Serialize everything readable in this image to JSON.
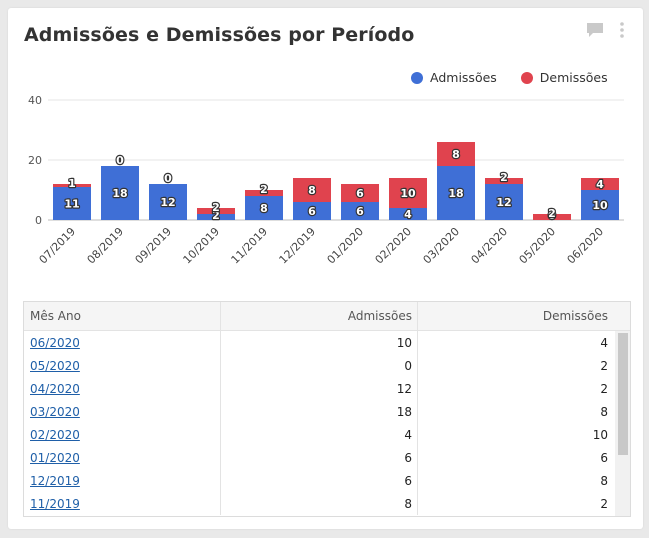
{
  "title": "Admissões e Demissões por Período",
  "icons": {
    "comment": "comment-icon",
    "more": "more-vertical-icon"
  },
  "colors": {
    "admissoes": "#3f6fd6",
    "demissoes": "#e0434e",
    "link": "#1f5fa8"
  },
  "legend": [
    {
      "label": "Admissões",
      "color": "#3f6fd6"
    },
    {
      "label": "Demissões",
      "color": "#e0434e"
    }
  ],
  "chart_data": {
    "type": "bar",
    "stacked": true,
    "title": "Admissões e Demissões por Período",
    "categories": [
      "07/2019",
      "08/2019",
      "09/2019",
      "10/2019",
      "11/2019",
      "12/2019",
      "01/2020",
      "02/2020",
      "03/2020",
      "04/2020",
      "05/2020",
      "06/2020"
    ],
    "series": [
      {
        "name": "Admissões",
        "color": "#3f6fd6",
        "values": [
          11,
          18,
          12,
          2,
          8,
          6,
          6,
          4,
          18,
          12,
          0,
          10
        ]
      },
      {
        "name": "Demissões",
        "color": "#e0434e",
        "values": [
          1,
          0,
          0,
          2,
          2,
          8,
          6,
          10,
          8,
          2,
          2,
          4
        ]
      }
    ],
    "yticks": [
      0,
      20,
      40
    ],
    "ylim": [
      0,
      40
    ],
    "xlabel": "",
    "ylabel": "",
    "grid": true,
    "legend_position": "top-right"
  },
  "table": {
    "headers": [
      "Mês Ano",
      "Admissões",
      "Demissões"
    ],
    "rows": [
      {
        "mes": "06/2020",
        "admissoes": "10",
        "demissoes": "4"
      },
      {
        "mes": "05/2020",
        "admissoes": "0",
        "demissoes": "2"
      },
      {
        "mes": "04/2020",
        "admissoes": "12",
        "demissoes": "2"
      },
      {
        "mes": "03/2020",
        "admissoes": "18",
        "demissoes": "8"
      },
      {
        "mes": "02/2020",
        "admissoes": "4",
        "demissoes": "10"
      },
      {
        "mes": "01/2020",
        "admissoes": "6",
        "demissoes": "6"
      },
      {
        "mes": "12/2019",
        "admissoes": "6",
        "demissoes": "8"
      },
      {
        "mes": "11/2019",
        "admissoes": "8",
        "demissoes": "2"
      }
    ]
  }
}
